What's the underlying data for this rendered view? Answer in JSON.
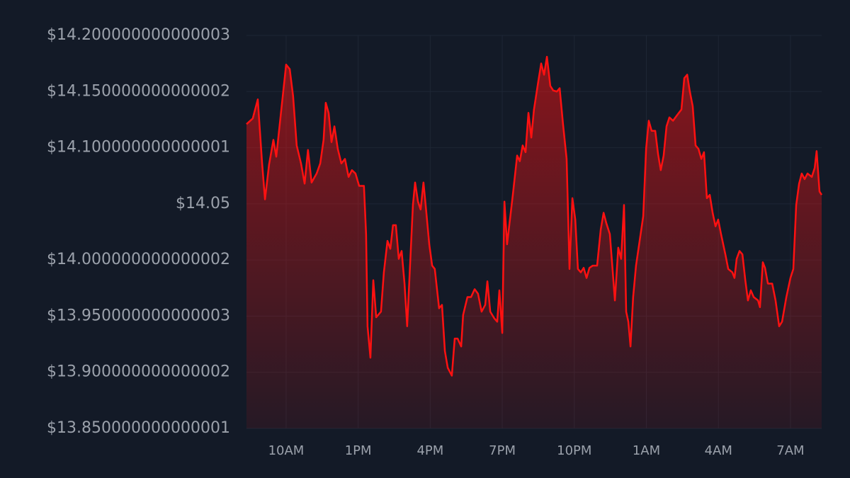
{
  "chart_data": {
    "type": "area",
    "x": [
      8.35,
      8.61,
      8.82,
      9.0,
      9.12,
      9.29,
      9.47,
      9.59,
      9.76,
      10.0,
      10.15,
      10.29,
      10.44,
      10.62,
      10.77,
      10.91,
      11.06,
      11.27,
      11.42,
      11.56,
      11.65,
      11.77,
      11.89,
      12.01,
      12.15,
      12.3,
      12.45,
      12.6,
      12.74,
      12.89,
      13.04,
      13.24,
      13.33,
      13.39,
      13.51,
      13.63,
      13.75,
      13.95,
      14.07,
      14.22,
      14.34,
      14.45,
      14.57,
      14.69,
      14.81,
      14.93,
      15.04,
      15.16,
      15.28,
      15.37,
      15.49,
      15.6,
      15.72,
      15.84,
      15.96,
      16.08,
      16.19,
      16.37,
      16.49,
      16.61,
      16.73,
      16.9,
      17.02,
      17.14,
      17.29,
      17.37,
      17.55,
      17.7,
      17.85,
      17.99,
      18.14,
      18.29,
      18.38,
      18.5,
      18.67,
      18.79,
      18.88,
      19.0,
      19.09,
      19.2,
      19.32,
      19.44,
      19.62,
      19.73,
      19.85,
      19.97,
      20.09,
      20.21,
      20.32,
      20.5,
      20.62,
      20.74,
      20.86,
      21.0,
      21.12,
      21.27,
      21.39,
      21.53,
      21.68,
      21.8,
      21.92,
      22.04,
      22.15,
      22.27,
      22.39,
      22.51,
      22.63,
      22.77,
      22.95,
      23.1,
      23.22,
      23.33,
      23.48,
      23.57,
      23.69,
      23.83,
      23.95,
      24.07,
      24.16,
      24.25,
      24.34,
      24.45,
      24.57,
      24.72,
      24.87,
      24.99,
      25.1,
      25.22,
      25.37,
      25.49,
      25.6,
      25.72,
      25.84,
      25.96,
      26.11,
      26.28,
      26.46,
      26.58,
      26.7,
      26.81,
      26.93,
      27.05,
      27.17,
      27.29,
      27.4,
      27.52,
      27.64,
      27.76,
      27.88,
      27.99,
      28.11,
      28.29,
      28.41,
      28.58,
      28.67,
      28.76,
      28.88,
      29.0,
      29.12,
      29.23,
      29.35,
      29.47,
      29.65,
      29.73,
      29.85,
      29.94,
      30.06,
      30.24,
      30.38,
      30.53,
      30.65,
      30.83,
      31.0,
      31.12,
      31.24,
      31.36,
      31.47,
      31.59,
      31.71,
      31.89,
      32.01,
      32.09,
      32.21,
      32.3
    ],
    "values": [
      14.121,
      14.126,
      14.143,
      14.086,
      14.054,
      14.085,
      14.107,
      14.092,
      14.126,
      14.174,
      14.17,
      14.146,
      14.102,
      14.086,
      14.068,
      14.098,
      14.069,
      14.077,
      14.086,
      14.107,
      14.14,
      14.131,
      14.105,
      14.119,
      14.099,
      14.086,
      14.09,
      14.074,
      14.08,
      14.077,
      14.066,
      14.066,
      14.023,
      13.941,
      13.913,
      13.982,
      13.949,
      13.954,
      13.989,
      14.017,
      14.01,
      14.031,
      14.031,
      14.001,
      14.008,
      13.979,
      13.941,
      13.995,
      14.049,
      14.069,
      14.052,
      14.045,
      14.069,
      14.042,
      14.014,
      13.995,
      13.992,
      13.957,
      13.96,
      13.919,
      13.904,
      13.897,
      13.93,
      13.93,
      13.923,
      13.951,
      13.967,
      13.967,
      13.974,
      13.97,
      13.954,
      13.96,
      13.981,
      13.954,
      13.948,
      13.945,
      13.973,
      13.935,
      14.052,
      14.014,
      14.036,
      14.058,
      14.093,
      14.088,
      14.102,
      14.096,
      14.131,
      14.109,
      14.134,
      14.159,
      14.175,
      14.165,
      14.181,
      14.155,
      14.151,
      14.15,
      14.153,
      14.121,
      14.09,
      13.992,
      14.055,
      14.036,
      13.992,
      13.989,
      13.993,
      13.984,
      13.993,
      13.995,
      13.995,
      14.027,
      14.042,
      14.033,
      14.023,
      13.998,
      13.964,
      14.011,
      14.001,
      14.049,
      13.954,
      13.945,
      13.923,
      13.967,
      13.995,
      14.017,
      14.039,
      14.099,
      14.124,
      14.115,
      14.115,
      14.094,
      14.08,
      14.093,
      14.119,
      14.127,
      14.124,
      14.129,
      14.134,
      14.162,
      14.165,
      14.15,
      14.137,
      14.102,
      14.099,
      14.09,
      14.096,
      14.055,
      14.058,
      14.042,
      14.03,
      14.036,
      14.023,
      14.005,
      13.992,
      13.989,
      13.984,
      14.001,
      14.008,
      14.005,
      13.982,
      13.964,
      13.973,
      13.967,
      13.964,
      13.958,
      13.998,
      13.993,
      13.979,
      13.979,
      13.964,
      13.941,
      13.945,
      13.967,
      13.984,
      13.992,
      14.049,
      14.068,
      14.077,
      14.072,
      14.077,
      14.074,
      14.082,
      14.097,
      14.061,
      14.058
    ],
    "color": "#ff1111",
    "xlim": [
      8.35,
      32.3
    ],
    "xticks": [
      {
        "value": 10,
        "label": "10AM"
      },
      {
        "value": 13,
        "label": "1PM"
      },
      {
        "value": 16,
        "label": "4PM"
      },
      {
        "value": 19,
        "label": "7PM"
      },
      {
        "value": 22,
        "label": "10PM"
      },
      {
        "value": 25,
        "label": "1AM"
      },
      {
        "value": 28,
        "label": "4AM"
      },
      {
        "value": 31,
        "label": "7AM"
      }
    ],
    "ylim": [
      13.850000000000001,
      14.200000000000003
    ],
    "yticks": [
      {
        "value": 13.850000000000001,
        "label": "$13.850000000000001"
      },
      {
        "value": 13.900000000000002,
        "label": "$13.900000000000002"
      },
      {
        "value": 13.950000000000003,
        "label": "$13.950000000000003"
      },
      {
        "value": 14.000000000000002,
        "label": "$14.000000000000002"
      },
      {
        "value": 14.05,
        "label": "$14.05"
      },
      {
        "value": 14.100000000000001,
        "label": "$14.100000000000001"
      },
      {
        "value": 14.150000000000002,
        "label": "$14.150000000000002"
      },
      {
        "value": 14.200000000000003,
        "label": "$14.200000000000003"
      }
    ],
    "grid": true
  }
}
